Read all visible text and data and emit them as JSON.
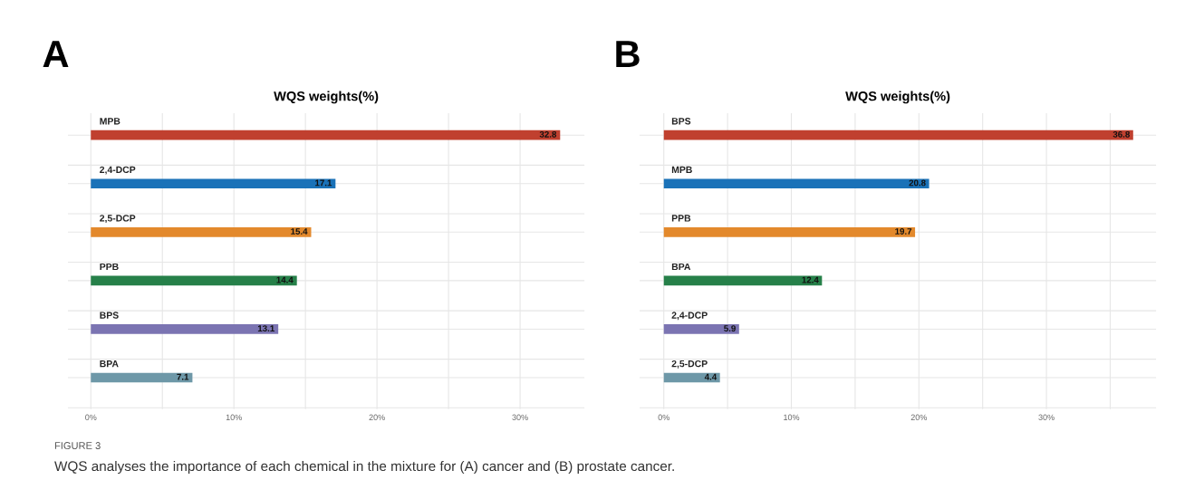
{
  "chart_data": [
    {
      "type": "bar",
      "orientation": "horizontal",
      "title": "WQS weights(%)",
      "categories": [
        "MPB",
        "2,4-DCP",
        "2,5-DCP",
        "PPB",
        "BPS",
        "BPA"
      ],
      "values": [
        32.8,
        17.1,
        15.4,
        14.4,
        13.1,
        7.1
      ],
      "colors": [
        "#c0402f",
        "#1a72b8",
        "#e3892c",
        "#268049",
        "#7b74b2",
        "#6e98a8"
      ],
      "data_labels": true,
      "xlim": [
        -1.6,
        34.5
      ],
      "xticks": [
        {
          "value": 0,
          "label": "0%"
        },
        {
          "value": 5,
          "label": null
        },
        {
          "value": 10,
          "label": "10%"
        },
        {
          "value": 15,
          "label": null
        },
        {
          "value": 20,
          "label": "20%"
        },
        {
          "value": 25,
          "label": null
        },
        {
          "value": 30,
          "label": "30%"
        }
      ],
      "grid": true,
      "tick_labels": "x",
      "annotations": [
        "A",
        "FIGURE 3",
        "WQS analyses the importance of each chemical in the mixture for (A) cancer and (B) prostate cancer."
      ]
    },
    {
      "type": "bar",
      "orientation": "horizontal",
      "title": "WQS weights(%)",
      "categories": [
        "BPS",
        "MPB",
        "PPB",
        "BPA",
        "2,4-DCP",
        "2,5-DCP"
      ],
      "values": [
        36.8,
        20.8,
        19.7,
        12.4,
        5.9,
        4.4
      ],
      "colors": [
        "#c0402f",
        "#1a72b8",
        "#e3892c",
        "#268049",
        "#7b74b2",
        "#6e98a8"
      ],
      "data_labels": true,
      "xlim": [
        -1.9,
        38.6
      ],
      "xticks": [
        {
          "value": 0,
          "label": "0%"
        },
        {
          "value": 5,
          "label": null
        },
        {
          "value": 10,
          "label": "10%"
        },
        {
          "value": 15,
          "label": null
        },
        {
          "value": 20,
          "label": "20%"
        },
        {
          "value": 25,
          "label": null
        },
        {
          "value": 30,
          "label": "30%"
        },
        {
          "value": 35,
          "label": null
        }
      ],
      "grid": true,
      "tick_labels": "x",
      "annotations": [
        "B"
      ]
    }
  ]
}
